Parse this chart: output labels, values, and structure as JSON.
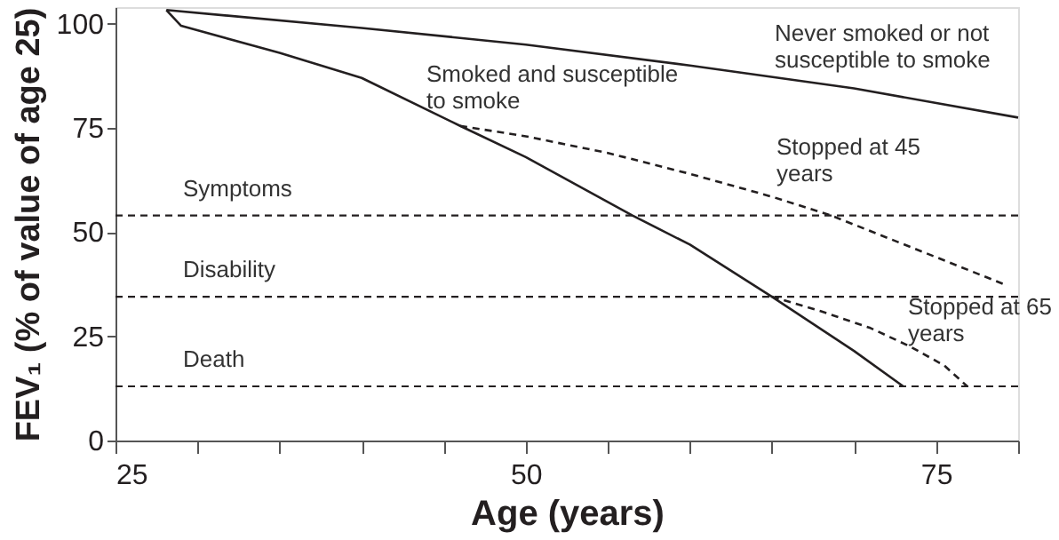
{
  "chart_data": {
    "type": "line",
    "xlabel": "Age (years)",
    "ylabel": "FEV₁ (% of value of age 25)",
    "xlim": [
      25,
      80
    ],
    "xticks": [
      25,
      {
        "value": 30,
        "label": null
      },
      {
        "value": 35,
        "label": null
      },
      {
        "value": 40,
        "label": null
      },
      {
        "value": 45,
        "label": null
      },
      50,
      {
        "value": 55,
        "label": null
      },
      {
        "value": 60,
        "label": null
      },
      {
        "value": 65,
        "label": null
      },
      {
        "value": 70,
        "label": null
      },
      75,
      {
        "value": 80,
        "label": null
      }
    ],
    "ylim": [
      0,
      104
    ],
    "yticks": [
      0,
      25,
      50,
      75,
      100
    ],
    "grid": false,
    "legend": false,
    "marker": "none",
    "series": [
      {
        "name": "Never smoked or not susceptible to smoke",
        "color": "#231f20",
        "line_style": "solid",
        "x": [
          28.1,
          40,
          50,
          60,
          70,
          80
        ],
        "values": [
          103.3,
          99,
          95,
          90,
          84.5,
          77.5
        ]
      },
      {
        "name": "Smoked and susceptible to smoke",
        "color": "#231f20",
        "line_style": "solid",
        "x": [
          28.1,
          29,
          35,
          40,
          46,
          50,
          56.5,
          60,
          65,
          70,
          73
        ],
        "values": [
          103.3,
          99.5,
          93,
          87,
          75.5,
          68,
          54,
          47,
          34.5,
          21.5,
          13
        ]
      },
      {
        "name": "Stopped at 45 years",
        "color": "#231f20",
        "line_style": "dashed",
        "x": [
          46,
          50,
          55,
          60,
          65,
          68.6,
          75,
          79.2
        ],
        "values": [
          75.5,
          73,
          69,
          64,
          58.5,
          54,
          44,
          37.4
        ]
      },
      {
        "name": "Stopped at 65 years",
        "color": "#231f20",
        "line_style": "dashed",
        "x": [
          65,
          68,
          71,
          73.4,
          75.5,
          76.9
        ],
        "values": [
          34.5,
          31,
          27,
          22.6,
          18,
          13
        ]
      }
    ],
    "ref_lines": [
      {
        "axis": "y",
        "value": 54,
        "label": "Symptoms",
        "color": "#231f20",
        "line_style": "dashed"
      },
      {
        "axis": "y",
        "value": 34.5,
        "label": "Disability",
        "color": "#231f20",
        "line_style": "dashed"
      },
      {
        "axis": "y",
        "value": 13,
        "label": "Death",
        "color": "#231f20",
        "line_style": "dashed"
      }
    ]
  }
}
